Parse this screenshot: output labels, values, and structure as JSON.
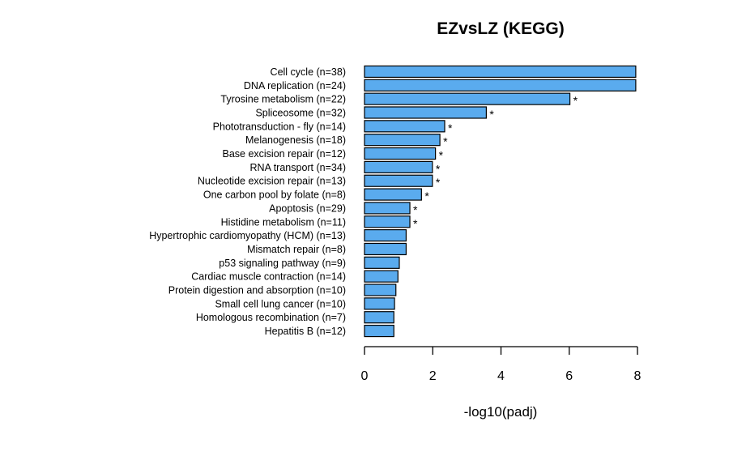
{
  "chart_data": {
    "type": "bar",
    "orientation": "horizontal",
    "title": "EZvsLZ (KEGG)",
    "xlabel": "-log10(padj)",
    "ylabel": "",
    "xlim": [
      0,
      8
    ],
    "xticks": [
      0,
      2,
      4,
      6,
      8
    ],
    "bar_color": "#5aabee",
    "categories": [
      "Cell cycle (n=38)",
      "DNA replication (n=24)",
      "Tyrosine metabolism (n=22)",
      "Spliceosome (n=32)",
      "Phototransduction - fly (n=14)",
      "Melanogenesis (n=18)",
      "Base excision repair (n=12)",
      "RNA transport (n=34)",
      "Nucleotide excision repair (n=13)",
      "One carbon pool by folate (n=8)",
      "Apoptosis (n=29)",
      "Histidine metabolism (n=11)",
      "Hypertrophic cardiomyopathy (HCM) (n=13)",
      "Mismatch repair (n=8)",
      "p53 signaling pathway (n=9)",
      "Cardiac muscle contraction (n=14)",
      "Protein digestion and absorption (n=10)",
      "Small cell lung cancer (n=10)",
      "Homologous recombination (n=7)",
      "Hepatitis B (n=12)"
    ],
    "values": [
      7.95,
      7.95,
      6.02,
      3.57,
      2.35,
      2.21,
      2.08,
      1.99,
      1.99,
      1.67,
      1.33,
      1.33,
      1.22,
      1.22,
      1.02,
      0.98,
      0.92,
      0.88,
      0.86,
      0.86
    ],
    "annotations": [
      "",
      "",
      "*",
      "*",
      "*",
      "*",
      "*",
      "*",
      "*",
      "*",
      "*",
      "*",
      "",
      "",
      "",
      "",
      "",
      "",
      "",
      ""
    ]
  }
}
